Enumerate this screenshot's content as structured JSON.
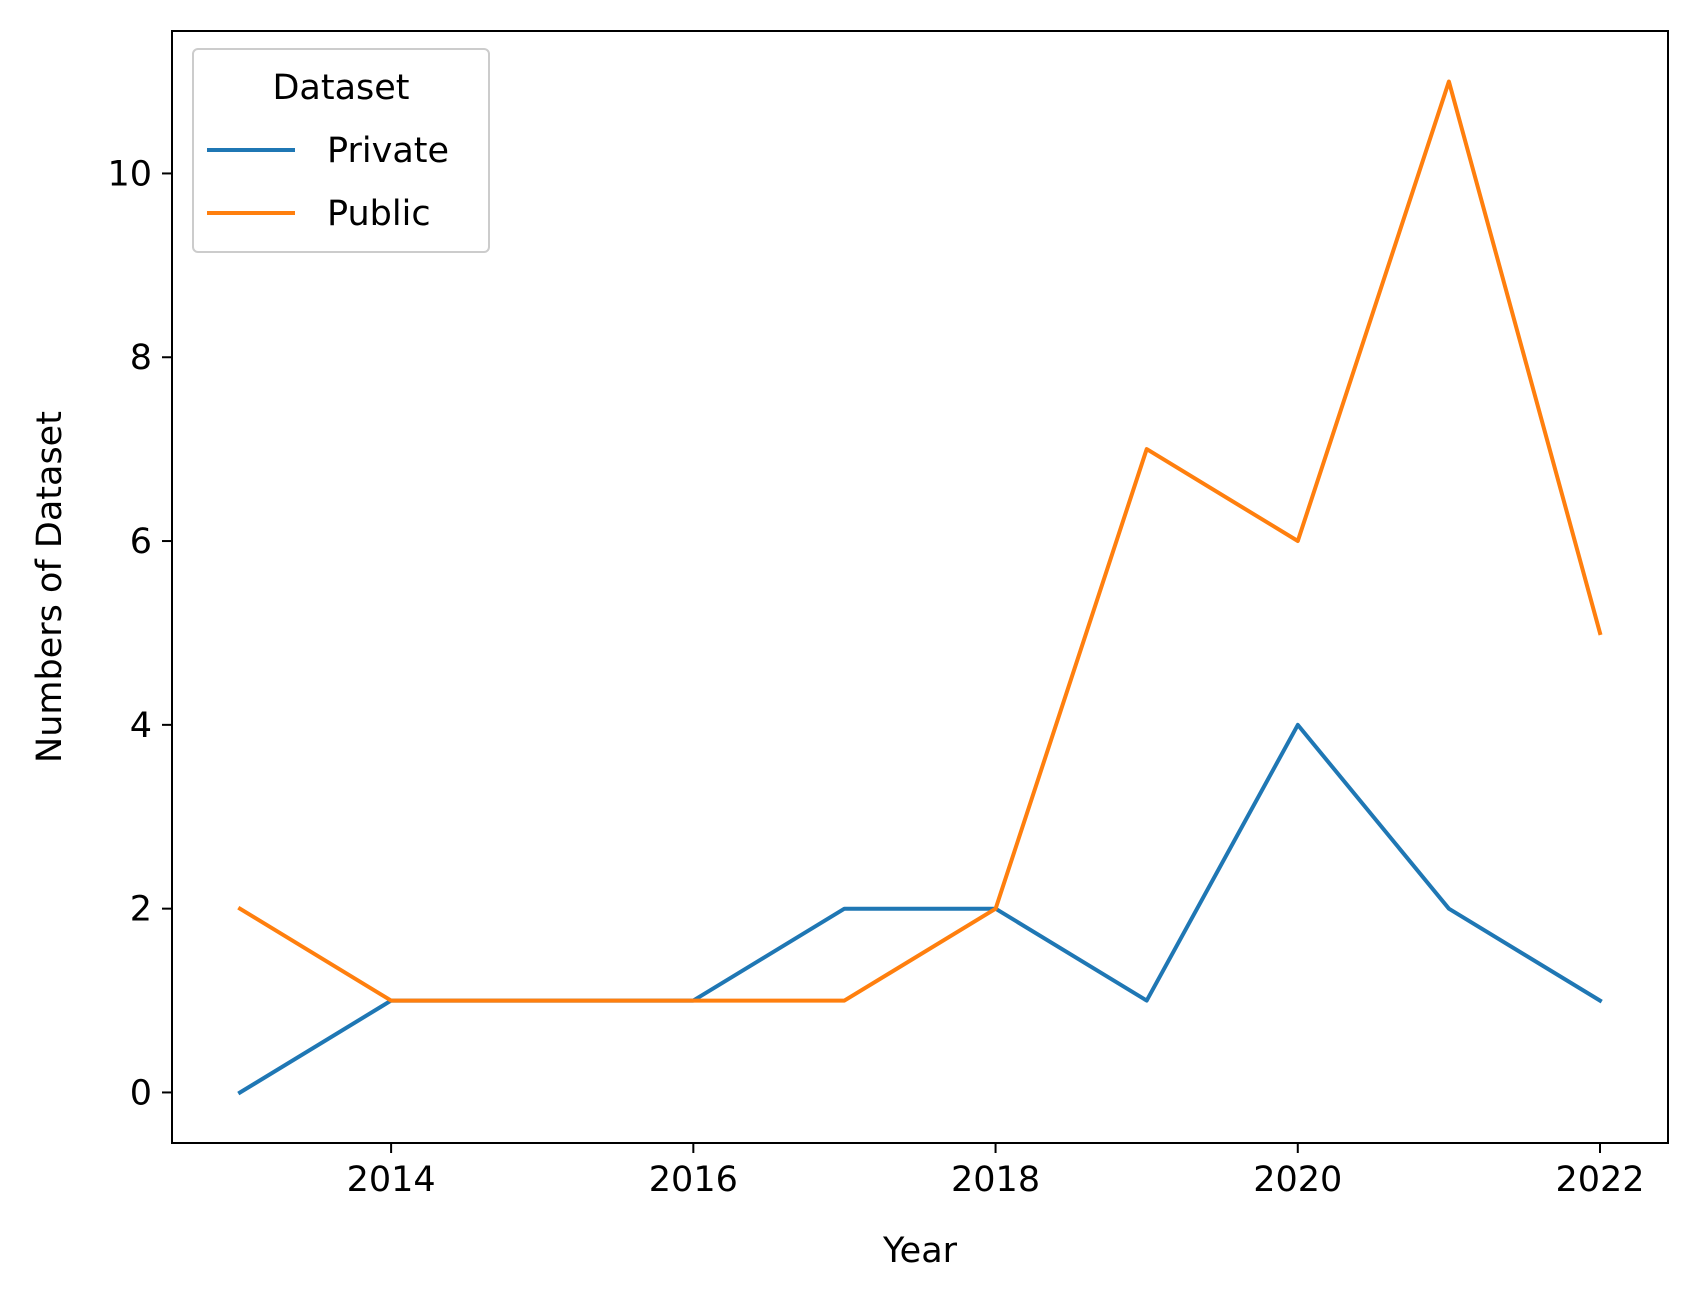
{
  "chart_data": {
    "type": "line",
    "xlabel": "Year",
    "ylabel": "Numbers of Dataset",
    "x": [
      2013,
      2014,
      2015,
      2016,
      2017,
      2018,
      2019,
      2020,
      2021,
      2022
    ],
    "series": [
      {
        "name": "Private",
        "values": [
          0,
          1,
          1,
          1,
          2,
          2,
          1,
          4,
          2,
          1
        ],
        "color": "#1f77b4"
      },
      {
        "name": "Public",
        "values": [
          2,
          1,
          1,
          1,
          1,
          2,
          7,
          6,
          11,
          5
        ],
        "color": "#ff7f0e"
      }
    ],
    "xticks": [
      "2014",
      "2016",
      "2018",
      "2020",
      "2022"
    ],
    "yticks": [
      "0",
      "2",
      "4",
      "6",
      "8",
      "10"
    ],
    "xlim": [
      2012.55,
      2022.45
    ],
    "ylim": [
      -0.55,
      11.55
    ],
    "legend": {
      "title": "Dataset",
      "placement": "top-left"
    },
    "grid": false
  }
}
